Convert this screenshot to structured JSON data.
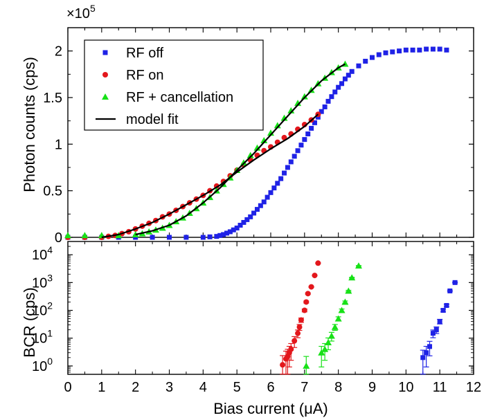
{
  "chart_data": [
    {
      "type": "scatter",
      "ylabel": "Photon counts (cps)",
      "multiplier_base": "×10",
      "multiplier_exp": "5",
      "xlim": [
        0,
        12
      ],
      "ylim": [
        0,
        2.25
      ],
      "yticks": [
        "0",
        "0.5",
        "1",
        "1.5",
        "2"
      ],
      "legend_position": "top-left",
      "legend": [
        "RF off",
        "RF on",
        "RF + cancellation",
        "model fit"
      ],
      "series": [
        {
          "name": "RF off",
          "color": "#1f22e6",
          "marker": "square",
          "x": [
            0.0,
            0.5,
            1.0,
            1.5,
            2.0,
            2.5,
            3.0,
            3.5,
            4.0,
            4.2,
            4.4,
            4.5,
            4.6,
            4.7,
            4.8,
            4.9,
            5.0,
            5.1,
            5.2,
            5.3,
            5.4,
            5.5,
            5.6,
            5.7,
            5.8,
            5.9,
            6.0,
            6.1,
            6.2,
            6.3,
            6.4,
            6.5,
            6.6,
            6.7,
            6.8,
            6.9,
            7.0,
            7.1,
            7.2,
            7.3,
            7.4,
            7.5,
            7.6,
            7.7,
            7.8,
            7.9,
            8.0,
            8.1,
            8.2,
            8.3,
            8.4,
            8.6,
            8.8,
            9.0,
            9.2,
            9.4,
            9.6,
            9.8,
            10.0,
            10.2,
            10.4,
            10.6,
            10.8,
            11.0,
            11.2
          ],
          "y": [
            0.0,
            0.0,
            0.0,
            0.0,
            0.0,
            0.0,
            0.0,
            0.0,
            0.0,
            0.005,
            0.01,
            0.02,
            0.03,
            0.045,
            0.06,
            0.08,
            0.1,
            0.13,
            0.16,
            0.19,
            0.22,
            0.26,
            0.3,
            0.34,
            0.38,
            0.43,
            0.48,
            0.53,
            0.58,
            0.63,
            0.69,
            0.75,
            0.81,
            0.87,
            0.93,
            0.99,
            1.05,
            1.11,
            1.17,
            1.23,
            1.29,
            1.35,
            1.4,
            1.46,
            1.51,
            1.56,
            1.61,
            1.65,
            1.7,
            1.74,
            1.78,
            1.84,
            1.89,
            1.93,
            1.96,
            1.98,
            1.99,
            2.0,
            2.01,
            2.01,
            2.01,
            2.02,
            2.02,
            2.02,
            2.01
          ]
        },
        {
          "name": "RF on",
          "color": "#e3171c",
          "marker": "circle",
          "x": [
            0.0,
            0.5,
            1.0,
            1.2,
            1.4,
            1.6,
            1.8,
            2.0,
            2.2,
            2.4,
            2.6,
            2.8,
            3.0,
            3.2,
            3.4,
            3.6,
            3.8,
            4.0,
            4.2,
            4.4,
            4.6,
            4.8,
            5.0,
            5.2,
            5.4,
            5.6,
            5.8,
            6.0,
            6.2,
            6.4,
            6.6,
            6.8,
            7.0,
            7.2,
            7.4
          ],
          "y": [
            0.0,
            0.0,
            0.0,
            0.01,
            0.02,
            0.04,
            0.06,
            0.09,
            0.12,
            0.15,
            0.18,
            0.22,
            0.25,
            0.29,
            0.33,
            0.37,
            0.41,
            0.45,
            0.5,
            0.55,
            0.6,
            0.66,
            0.72,
            0.78,
            0.83,
            0.88,
            0.93,
            0.97,
            1.02,
            1.07,
            1.11,
            1.16,
            1.21,
            1.26,
            1.32
          ]
        },
        {
          "name": "RF + cancellation",
          "color": "#17e117",
          "marker": "triangle",
          "x": [
            0.0,
            0.5,
            1.0,
            1.5,
            2.0,
            2.2,
            2.4,
            2.6,
            2.8,
            3.0,
            3.2,
            3.4,
            3.6,
            3.8,
            4.0,
            4.2,
            4.4,
            4.6,
            4.8,
            5.0,
            5.2,
            5.4,
            5.6,
            5.8,
            6.0,
            6.2,
            6.4,
            6.6,
            6.8,
            7.0,
            7.2,
            7.4,
            7.6,
            7.8,
            8.0,
            8.2
          ],
          "y": [
            0.02,
            0.02,
            0.02,
            0.02,
            0.03,
            0.04,
            0.06,
            0.08,
            0.1,
            0.13,
            0.17,
            0.21,
            0.26,
            0.31,
            0.37,
            0.43,
            0.5,
            0.57,
            0.64,
            0.72,
            0.8,
            0.88,
            0.96,
            1.04,
            1.12,
            1.2,
            1.28,
            1.36,
            1.44,
            1.51,
            1.58,
            1.65,
            1.71,
            1.77,
            1.82,
            1.86
          ]
        }
      ],
      "fits": [
        {
          "name": "model fit",
          "color": "#000000",
          "x": [
            1.0,
            1.5,
            2.0,
            2.5,
            3.0,
            3.5,
            4.0,
            4.5,
            5.0,
            5.5,
            6.0,
            6.5,
            7.0,
            7.4
          ],
          "y": [
            0.0,
            0.03,
            0.09,
            0.16,
            0.25,
            0.35,
            0.45,
            0.56,
            0.7,
            0.83,
            0.95,
            1.06,
            1.19,
            1.32
          ]
        },
        {
          "name": "model fit",
          "color": "#000000",
          "x": [
            2.0,
            2.5,
            3.0,
            3.5,
            4.0,
            4.5,
            5.0,
            5.5,
            6.0,
            6.5,
            7.0,
            7.5,
            8.0,
            8.2
          ],
          "y": [
            0.03,
            0.07,
            0.13,
            0.23,
            0.37,
            0.53,
            0.72,
            0.9,
            1.1,
            1.3,
            1.5,
            1.68,
            1.82,
            1.86
          ]
        }
      ]
    },
    {
      "type": "scatter",
      "xlabel": "Bias current (μA)",
      "ylabel": "BCR (cps)",
      "yscale": "log",
      "xlim": [
        0,
        12
      ],
      "ylim": [
        0.5,
        30000
      ],
      "xticks": [
        "0",
        "1",
        "2",
        "3",
        "4",
        "5",
        "6",
        "7",
        "8",
        "9",
        "10",
        "11",
        "12"
      ],
      "yticks": [
        {
          "base": "10",
          "exp": "0"
        },
        {
          "base": "10",
          "exp": "1"
        },
        {
          "base": "10",
          "exp": "2"
        },
        {
          "base": "10",
          "exp": "3"
        },
        {
          "base": "10",
          "exp": "4"
        }
      ],
      "series": [
        {
          "name": "RF on",
          "color": "#e3171c",
          "marker": "circle",
          "x": [
            6.35,
            6.45,
            6.5,
            6.55,
            6.6,
            6.7,
            6.8,
            6.85,
            6.9,
            7.0,
            7.05,
            7.1,
            7.2,
            7.3,
            7.4
          ],
          "y": [
            1.1,
            1.8,
            2.2,
            3.0,
            4.0,
            8.0,
            15,
            25,
            45,
            100,
            200,
            400,
            700,
            1800,
            5000
          ]
        },
        {
          "name": "RF + cancellation",
          "color": "#17e117",
          "marker": "triangle",
          "x": [
            7.05,
            7.5,
            7.6,
            7.7,
            7.8,
            7.9,
            8.0,
            8.1,
            8.2,
            8.3,
            8.4,
            8.6
          ],
          "y": [
            1.0,
            3.0,
            4.0,
            7.0,
            12,
            25,
            50,
            100,
            200,
            500,
            1500,
            4000
          ]
        },
        {
          "name": "RF off",
          "color": "#1f22e6",
          "marker": "square",
          "x": [
            10.5,
            10.6,
            10.7,
            10.8,
            10.9,
            11.0,
            11.1,
            11.2,
            11.3,
            11.45
          ],
          "y": [
            2.0,
            3.0,
            5.0,
            15,
            20,
            40,
            100,
            150,
            500,
            1000
          ]
        }
      ]
    }
  ]
}
